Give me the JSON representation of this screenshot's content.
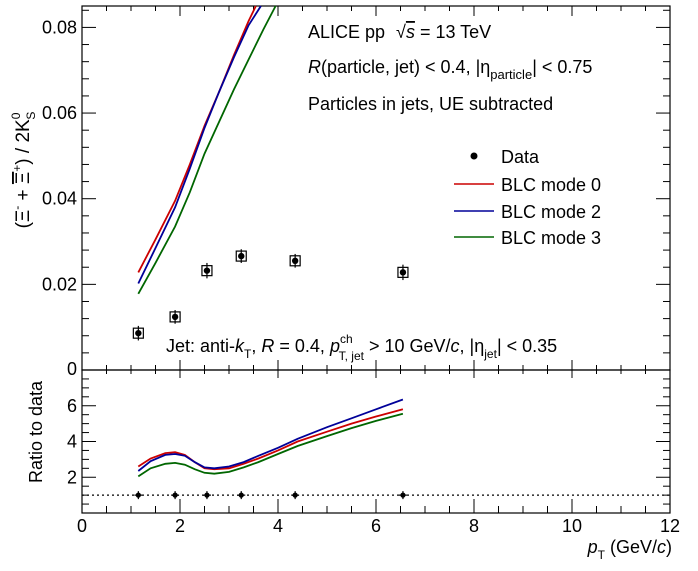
{
  "chart_data": [
    {
      "type": "scatter",
      "panel": "top",
      "ylabel_parts": {
        "p1": "(",
        "xi_minus": "Ξ",
        "minus_sup": "-",
        "plus_text": " + ",
        "xi_bar": "Ξ",
        "plus_sup": "+",
        "close": ") / 2K",
        "k_sup": "0",
        "k_sub": "S"
      },
      "xlim": [
        0,
        12
      ],
      "ylim": [
        0,
        0.085
      ],
      "y_ticks": [
        0.02,
        0.04,
        0.06,
        0.08
      ],
      "y_tick_labels": [
        "0.02",
        "0.04",
        "0.06",
        "0.08"
      ],
      "y_zero_label": "0",
      "annotations": {
        "line1": {
          "prefix": "ALICE pp ",
          "sqrt": "√",
          "s": "s",
          "suffix": " = 13 TeV"
        },
        "line2": {
          "r": "R",
          "mid": "(particle, jet) < 0.4, |η",
          "sub": "particle",
          "end": "| < 0.75"
        },
        "line3": "Particles in jets, UE subtracted",
        "jet": {
          "a": "Jet: anti-",
          "k": "k",
          "ksub": "T",
          "b": ", ",
          "r": "R",
          "c": " = 0.4, ",
          "p": "p",
          "psup": "ch",
          "psub": "T, jet",
          "d": " > 10 GeV/",
          "cc": "c",
          "e": ", |η",
          "esub": "jet",
          "f": "| < 0.35"
        }
      },
      "legend": {
        "placement": "right",
        "entries": [
          "Data",
          "BLC mode 0",
          "BLC mode 2",
          "BLC mode 3"
        ]
      },
      "data_points": [
        {
          "x": 1.15,
          "y": 0.0086,
          "xerr": 0.15,
          "yerr": 0.0017
        },
        {
          "x": 1.9,
          "y": 0.0124,
          "xerr": 0.15,
          "yerr": 0.0016
        },
        {
          "x": 2.55,
          "y": 0.0232,
          "xerr": 0.15,
          "yerr": 0.0018
        },
        {
          "x": 3.25,
          "y": 0.0266,
          "xerr": 0.15,
          "yerr": 0.0016
        },
        {
          "x": 4.35,
          "y": 0.0255,
          "xerr": 0.15,
          "yerr": 0.0016
        },
        {
          "x": 6.55,
          "y": 0.0228,
          "xerr": 0.15,
          "yerr": 0.0018
        }
      ],
      "series": [
        {
          "name": "BLC mode 0",
          "color": "#cc0000",
          "x": [
            1.15,
            1.5,
            1.9,
            2.2,
            2.5,
            2.8,
            3.1,
            3.4,
            3.55
          ],
          "y": [
            0.0228,
            0.0305,
            0.0395,
            0.048,
            0.057,
            0.065,
            0.0735,
            0.0815,
            0.085
          ]
        },
        {
          "name": "BLC mode 2",
          "color": "#000099",
          "x": [
            1.15,
            1.5,
            1.9,
            2.2,
            2.5,
            2.8,
            3.1,
            3.4,
            3.65
          ],
          "y": [
            0.0202,
            0.0285,
            0.038,
            0.047,
            0.0565,
            0.065,
            0.073,
            0.0805,
            0.085
          ]
        },
        {
          "name": "BLC mode 3",
          "color": "#006600",
          "x": [
            1.15,
            1.5,
            1.9,
            2.2,
            2.5,
            2.8,
            3.1,
            3.4,
            3.7,
            3.95
          ],
          "y": [
            0.0178,
            0.025,
            0.0335,
            0.0415,
            0.0505,
            0.058,
            0.0655,
            0.0725,
            0.0795,
            0.085
          ]
        }
      ]
    },
    {
      "type": "line",
      "panel": "bottom",
      "ylabel": "Ratio to data",
      "xlabel_parts": {
        "p": "p",
        "sub": "T",
        "unit": " (GeV/",
        "c": "c",
        "close": ")"
      },
      "xlim": [
        0,
        12
      ],
      "ylim": [
        0,
        8
      ],
      "x_ticks": [
        0,
        2,
        4,
        6,
        8,
        10,
        12
      ],
      "x_tick_labels": [
        "0",
        "2",
        "4",
        "6",
        "8",
        "10",
        "12"
      ],
      "y_ticks": [
        2,
        4,
        6
      ],
      "y_tick_labels": [
        "2",
        "4",
        "6"
      ],
      "reference_line": 1,
      "data_points": [
        {
          "x": 1.15,
          "y": 1,
          "xerr": 0.15
        },
        {
          "x": 1.9,
          "y": 1,
          "xerr": 0.15
        },
        {
          "x": 2.55,
          "y": 1,
          "xerr": 0.15
        },
        {
          "x": 3.25,
          "y": 1,
          "xerr": 0.15
        },
        {
          "x": 4.35,
          "y": 1,
          "xerr": 0.15
        },
        {
          "x": 6.55,
          "y": 1,
          "xerr": 0.15
        }
      ],
      "series": [
        {
          "name": "BLC mode 0",
          "color": "#cc0000",
          "x": [
            1.15,
            1.4,
            1.7,
            1.9,
            2.1,
            2.3,
            2.5,
            2.7,
            3.0,
            3.3,
            3.6,
            4.0,
            4.4,
            5.0,
            5.5,
            6.0,
            6.55
          ],
          "y": [
            2.6,
            3.05,
            3.35,
            3.4,
            3.25,
            2.85,
            2.5,
            2.45,
            2.5,
            2.75,
            3.05,
            3.5,
            4.0,
            4.55,
            5.0,
            5.4,
            5.8
          ]
        },
        {
          "name": "BLC mode 2",
          "color": "#000099",
          "x": [
            1.15,
            1.4,
            1.7,
            1.9,
            2.1,
            2.3,
            2.5,
            2.7,
            3.0,
            3.3,
            3.6,
            4.0,
            4.4,
            5.0,
            5.5,
            6.0,
            6.55
          ],
          "y": [
            2.35,
            2.9,
            3.25,
            3.3,
            3.2,
            2.85,
            2.55,
            2.5,
            2.6,
            2.85,
            3.2,
            3.65,
            4.15,
            4.8,
            5.3,
            5.8,
            6.35
          ]
        },
        {
          "name": "BLC mode 3",
          "color": "#006600",
          "x": [
            1.15,
            1.4,
            1.7,
            1.9,
            2.1,
            2.3,
            2.5,
            2.7,
            3.0,
            3.3,
            3.6,
            4.0,
            4.4,
            5.0,
            5.5,
            6.0,
            6.55
          ],
          "y": [
            2.05,
            2.5,
            2.75,
            2.8,
            2.7,
            2.45,
            2.25,
            2.2,
            2.3,
            2.55,
            2.85,
            3.3,
            3.75,
            4.3,
            4.75,
            5.15,
            5.55
          ]
        }
      ]
    }
  ]
}
